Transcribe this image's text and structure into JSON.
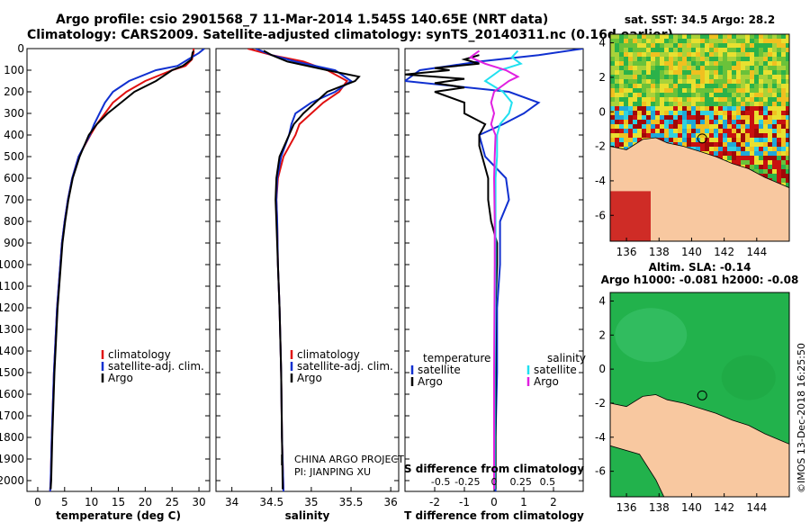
{
  "header": {
    "line1": "Argo profile: csio 2901568_7 11-Mar-2014 1.545S 140.65E (NRT data)",
    "line2": "Climatology: CARS2009. Satellite-adjusted climatology: synTS_20140311.nc (0.16d earlier)"
  },
  "colors": {
    "climatology": "#e01010",
    "satellite": "#1030d0",
    "argo": "#000000",
    "sal_satellite": "#20e0f0",
    "sal_argo": "#e020e0",
    "land": "#f8c8a0",
    "sea_green": "#22b24c"
  },
  "depth_ticks": [
    "0",
    "100",
    "200",
    "300",
    "400",
    "500",
    "600",
    "700",
    "800",
    "900",
    "1000",
    "1100",
    "1200",
    "1300",
    "1400",
    "1500",
    "1600",
    "1700",
    "1800",
    "1900",
    "2000"
  ],
  "chart_data": [
    {
      "type": "line",
      "name": "temperature profile",
      "xlabel": "temperature (deg C)",
      "xlim": [
        -2,
        32
      ],
      "ylim": [
        2050,
        0
      ],
      "xticks": [
        "0",
        "5",
        "10",
        "15",
        "20",
        "25",
        "30"
      ],
      "xtick_values": [
        0,
        5,
        10,
        15,
        20,
        25,
        30
      ],
      "legend": [
        "climatology",
        "satellite-adj. clim.",
        "Argo"
      ],
      "series": [
        {
          "name": "climatology",
          "color": "red",
          "depth": [
            0,
            20,
            50,
            80,
            100,
            150,
            200,
            250,
            300,
            350,
            400,
            500,
            600,
            700,
            800,
            900,
            1000,
            1200,
            1500,
            1800,
            2000,
            2050
          ],
          "values": [
            29,
            29,
            28.7,
            27.5,
            25,
            20,
            16.5,
            14,
            12.5,
            11,
            9.8,
            7.6,
            6.4,
            5.6,
            5,
            4.5,
            4.2,
            3.6,
            3,
            2.6,
            2.4,
            2.3
          ]
        },
        {
          "name": "satellite-adj. clim.",
          "color": "blue",
          "depth": [
            0,
            20,
            50,
            80,
            100,
            150,
            200,
            250,
            300,
            350,
            400,
            500,
            600,
            700,
            800,
            900,
            1000,
            1200,
            1500,
            1800,
            2000,
            2050
          ],
          "values": [
            31,
            30,
            28,
            26,
            22,
            17,
            14,
            12.5,
            11.5,
            10.5,
            9.7,
            7.6,
            6.4,
            5.6,
            5,
            4.5,
            4.2,
            3.6,
            3,
            2.6,
            2.4,
            2.3
          ]
        },
        {
          "name": "Argo",
          "color": "black",
          "depth": [
            10,
            20,
            50,
            80,
            100,
            150,
            200,
            250,
            300,
            350,
            400,
            500,
            600,
            700,
            800,
            900,
            1000,
            1200,
            1500,
            1800,
            2000,
            2040
          ],
          "values": [
            29,
            28.8,
            28.6,
            27,
            25,
            22,
            18,
            15.5,
            13,
            11,
            9.5,
            7.8,
            6.5,
            5.7,
            5.1,
            4.6,
            4.3,
            3.7,
            3.1,
            2.7,
            2.5,
            2.4
          ]
        }
      ]
    },
    {
      "type": "line",
      "name": "salinity profile",
      "xlabel": "salinity",
      "xlim": [
        33.8,
        36.1
      ],
      "ylim": [
        2050,
        0
      ],
      "xticks": [
        "34",
        "34.5",
        "35",
        "35.5",
        "36"
      ],
      "xtick_values": [
        34,
        34.5,
        35,
        35.5,
        36
      ],
      "legend": [
        "climatology",
        "satellite-adj. clim.",
        "Argo"
      ],
      "annotation": [
        "CHINA ARGO PROJECT",
        "PI: JIANPING XU"
      ],
      "series": [
        {
          "name": "climatology",
          "color": "red",
          "depth": [
            0,
            30,
            60,
            100,
            150,
            200,
            250,
            300,
            350,
            400,
            500,
            600,
            700,
            800,
            1000,
            1200,
            1500,
            1800,
            2050
          ],
          "values": [
            34.2,
            34.5,
            34.9,
            35.2,
            35.45,
            35.35,
            35.15,
            35.0,
            34.85,
            34.8,
            34.65,
            34.58,
            34.56,
            34.57,
            34.58,
            34.6,
            34.62,
            34.63,
            34.65
          ]
        },
        {
          "name": "satellite-adj. clim.",
          "color": "blue",
          "depth": [
            0,
            30,
            60,
            100,
            150,
            200,
            250,
            300,
            350,
            400,
            500,
            600,
            700,
            800,
            1000,
            1200,
            1500,
            1800,
            2050
          ],
          "values": [
            34.3,
            34.5,
            34.8,
            35.3,
            35.5,
            35.3,
            35.0,
            34.8,
            34.75,
            34.72,
            34.62,
            34.57,
            34.56,
            34.57,
            34.58,
            34.6,
            34.62,
            34.63,
            34.65
          ]
        },
        {
          "name": "Argo",
          "color": "black",
          "depth": [
            10,
            30,
            60,
            100,
            130,
            150,
            200,
            250,
            300,
            350,
            400,
            500,
            600,
            700,
            800,
            1000,
            1200,
            1500,
            1800,
            2040
          ],
          "values": [
            34.4,
            34.5,
            34.7,
            35.2,
            35.6,
            35.55,
            35.2,
            35.05,
            34.9,
            34.78,
            34.72,
            34.6,
            34.56,
            34.55,
            34.56,
            34.58,
            34.6,
            34.62,
            34.63,
            34.64
          ]
        }
      ]
    },
    {
      "type": "line",
      "name": "difference from climatology",
      "xlabel": "T difference from climatology",
      "xlabel_top": "S difference from climatology",
      "xlim": [
        -3,
        3
      ],
      "ylim": [
        2050,
        0
      ],
      "xticks": [
        "-2",
        "-1",
        "0",
        "1",
        "2"
      ],
      "xtick_values": [
        -2,
        -1,
        0,
        1,
        2
      ],
      "top_ticks": [
        "-0.5",
        "-0.25",
        "0",
        "0.25",
        "0.5"
      ],
      "top_tick_values": [
        -1.8,
        -0.9,
        0,
        0.9,
        1.8
      ],
      "legend_temperature": [
        "temperature",
        "satellite",
        "Argo"
      ],
      "legend_salinity": [
        "salinity",
        "satellite",
        "Argo"
      ],
      "series": [
        {
          "name": "temperature satellite",
          "color": "blue",
          "depth": [
            0,
            30,
            60,
            80,
            100,
            150,
            200,
            250,
            300,
            350,
            400,
            500,
            600,
            700,
            800,
            900,
            1000,
            1200,
            1500,
            1800,
            2050
          ],
          "values": [
            3.0,
            1.5,
            -0.5,
            -1.5,
            -2.5,
            -3.0,
            0.5,
            1.5,
            1.0,
            0.3,
            -0.5,
            -0.3,
            0.4,
            0.5,
            0.2,
            0.2,
            0.2,
            0.1,
            0.1,
            0.05,
            0.05
          ]
        },
        {
          "name": "temperature Argo",
          "color": "black",
          "depth": [
            30,
            50,
            70,
            90,
            100,
            120,
            140,
            160,
            180,
            200,
            250,
            300,
            350,
            400,
            450,
            500,
            600,
            700,
            800,
            900,
            1000,
            1200,
            1500,
            1800,
            2040
          ],
          "values": [
            -0.5,
            -1.0,
            -0.5,
            -2.0,
            -1.5,
            -3.0,
            -1.0,
            -2.0,
            -1.0,
            -2.0,
            -1.0,
            -1.0,
            -0.3,
            -0.5,
            -0.5,
            -0.4,
            -0.2,
            -0.2,
            -0.1,
            0.1,
            0.1,
            0.05,
            0.05,
            0.05,
            0.05
          ]
        },
        {
          "name": "salinity satellite",
          "color": "cyan",
          "depth": [
            10,
            40,
            70,
            100,
            150,
            200,
            250,
            300,
            350,
            400,
            500,
            600,
            800,
            1000,
            1500,
            2040
          ],
          "values": [
            0.8,
            0.6,
            0.9,
            0.2,
            -0.3,
            0.3,
            0.6,
            0.5,
            0.2,
            0.1,
            0.1,
            0.05,
            0.05,
            0.05,
            0.02,
            0.02
          ]
        },
        {
          "name": "salinity Argo",
          "color": "magenta",
          "depth": [
            10,
            40,
            70,
            100,
            130,
            150,
            200,
            250,
            300,
            350,
            400,
            500,
            600,
            800,
            1000,
            1500,
            2040
          ],
          "values": [
            -0.5,
            -0.8,
            -0.3,
            0.4,
            0.8,
            0.5,
            0.0,
            -0.1,
            0.0,
            -0.1,
            0.05,
            0.02,
            0.0,
            0.02,
            0.02,
            0.0,
            0.0
          ]
        }
      ]
    },
    {
      "type": "heatmap",
      "name": "SST map",
      "title": "sat. SST: 34.5 Argo: 28.2",
      "xticks": [
        "136",
        "138",
        "140",
        "142",
        "144"
      ],
      "xtick_values": [
        136,
        138,
        140,
        142,
        144
      ],
      "yticks": [
        "4",
        "2",
        "0",
        "-2",
        "-4",
        "-6"
      ],
      "ytick_values": [
        4,
        2,
        0,
        -2,
        -4,
        -6
      ],
      "xlim": [
        135,
        146
      ],
      "ylim": [
        -7.5,
        4.5
      ],
      "marker": {
        "lon": 140.65,
        "lat": -1.545
      }
    },
    {
      "type": "heatmap",
      "name": "SLA map",
      "title": "Altim. SLA: -0.14",
      "subtitle": "Argo h1000: -0.081 h2000: -0.08",
      "xticks": [
        "136",
        "138",
        "140",
        "142",
        "144"
      ],
      "xtick_values": [
        136,
        138,
        140,
        142,
        144
      ],
      "yticks": [
        "4",
        "2",
        "0",
        "-2",
        "-4",
        "-6"
      ],
      "ytick_values": [
        4,
        2,
        0,
        -2,
        -4,
        -6
      ],
      "xlim": [
        135,
        146
      ],
      "ylim": [
        -7.5,
        4.5
      ],
      "marker": {
        "lon": 140.65,
        "lat": -1.545
      }
    }
  ],
  "credit": "©IMOS 13-Dec-2018 16:25:50"
}
